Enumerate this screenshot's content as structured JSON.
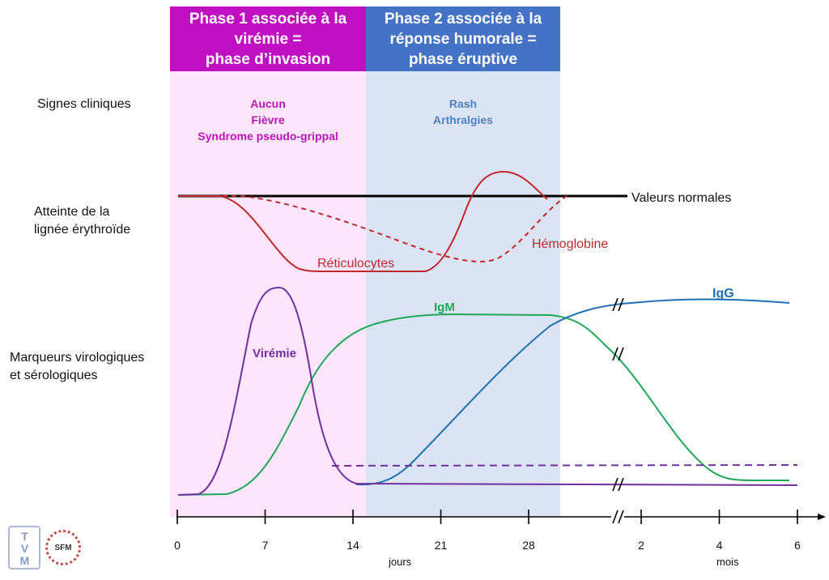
{
  "phases": [
    {
      "title_lines": [
        "Phase 1 associée à la",
        "virémie =",
        "phase d’invasion"
      ],
      "header_color": "#c00fc0",
      "band_color": "#fde6fb"
    },
    {
      "title_lines": [
        "Phase 2 associée à la",
        "réponse humorale =",
        "phase éruptive"
      ],
      "header_color": "#4472c4",
      "band_color": "#dbe4f3"
    }
  ],
  "row_labels": {
    "clinical": [
      "Signes cliniques"
    ],
    "erythroid": [
      "Atteinte de la",
      "lignée érythroïde"
    ],
    "markers": [
      "Marqueurs virologiques",
      "et sérologiques"
    ]
  },
  "clinical_signs": {
    "phase1": {
      "lines": [
        "Aucun",
        "Fièvre",
        "Syndrome pseudo-grippal"
      ],
      "color": "#b915b9"
    },
    "phase2": {
      "lines": [
        "Rash",
        "Arthralgies"
      ],
      "color": "#4f7fc4"
    }
  },
  "chart_data": {
    "type": "line",
    "x_axis": {
      "segments": [
        {
          "unit": "jours",
          "ticks": [
            0,
            7,
            14,
            21,
            28
          ]
        },
        {
          "unit": "mois",
          "ticks": [
            2,
            4,
            6
          ]
        }
      ],
      "break_between_segments": true
    },
    "reference_line": {
      "label": "Valeurs normales",
      "color": "#000000"
    },
    "series": [
      {
        "name": "Réticulocytes",
        "color": "#c0282d",
        "style": "solid",
        "description_points": [
          [
            0,
            "normal"
          ],
          [
            4,
            "normal"
          ],
          [
            10,
            "min"
          ],
          [
            20,
            "min"
          ],
          [
            25,
            "above normal peak"
          ],
          [
            29,
            "normal"
          ]
        ]
      },
      {
        "name": "Hémoglobine",
        "color": "#c0282d",
        "style": "dashed",
        "description_points": [
          [
            0,
            "normal"
          ],
          [
            5,
            "normal"
          ],
          [
            24,
            "min"
          ],
          [
            31,
            "normal"
          ]
        ]
      },
      {
        "name": "Virémie",
        "color": "#7030a0",
        "style": "solid",
        "description_points": [
          [
            0,
            "baseline"
          ],
          [
            8,
            "peak"
          ],
          [
            14,
            "baseline"
          ]
        ],
        "residual_dashed": true
      },
      {
        "name": "IgM",
        "color": "#1fa85a",
        "style": "solid",
        "description_points": [
          [
            4,
            "baseline"
          ],
          [
            15,
            "plateau"
          ],
          [
            29,
            "plateau"
          ],
          [
            4,
            "low residual (mois)"
          ]
        ]
      },
      {
        "name": "IgG",
        "color": "#1f6fb4",
        "style": "solid",
        "description_points": [
          [
            15,
            "baseline"
          ],
          [
            31,
            "high"
          ],
          [
            6,
            "plateau (mois)"
          ]
        ]
      }
    ]
  },
  "logos": {
    "left": "TVM",
    "right": "SFM"
  }
}
